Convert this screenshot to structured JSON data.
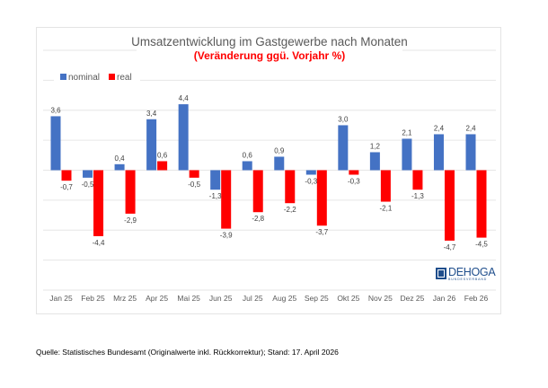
{
  "chart_data": {
    "type": "bar",
    "title": "Umsatzentwicklung im Gastgewerbe nach Monaten",
    "subtitle": "(Veränderung ggü. Vorjahr %)",
    "xlabel": "",
    "ylabel": "",
    "ylim": [
      -8,
      8
    ],
    "grid": true,
    "legend_position": "top-left",
    "categories": [
      "Jan 25",
      "Feb 25",
      "Mrz 25",
      "Apr 25",
      "Mai 25",
      "Jun 25",
      "Jul 25",
      "Aug 25",
      "Sep 25",
      "Okt 25",
      "Nov 25",
      "Dez 25",
      "Jan 26",
      "Feb 26"
    ],
    "series": [
      {
        "name": "nominal",
        "color": "#4472c4",
        "values": [
          3.6,
          -0.5,
          0.4,
          3.4,
          4.4,
          -1.3,
          0.6,
          0.9,
          -0.3,
          3.0,
          1.2,
          2.1,
          2.4,
          2.4
        ],
        "labels": [
          "3,6",
          "-0,5",
          "0,4",
          "3,4",
          "4,4",
          "-1,3",
          "0,6",
          "0,9",
          "-0,3",
          "3,0",
          "1,2",
          "2,1",
          "2,4",
          "2,4"
        ]
      },
      {
        "name": "real",
        "color": "#ff0000",
        "values": [
          -0.7,
          -4.4,
          -2.9,
          0.6,
          -0.5,
          -3.9,
          -2.8,
          -2.2,
          -3.7,
          -0.3,
          -2.1,
          -1.3,
          -4.7,
          -4.5
        ],
        "labels": [
          "-0,7",
          "-4,4",
          "-2,9",
          "0,6",
          "-0,5",
          "-3,9",
          "-2,8",
          "-2,2",
          "-3,7",
          "-0,3",
          "-2,1",
          "-1,3",
          "-4,7",
          "-4,5"
        ]
      }
    ]
  },
  "logo": {
    "name": "DEHOGA",
    "tagline": "BUNDESVERBAND"
  },
  "source": "Quelle: Statistisches Bundesamt (Originalwerte inkl. Rückkorrektur); Stand: 17. April 2026"
}
